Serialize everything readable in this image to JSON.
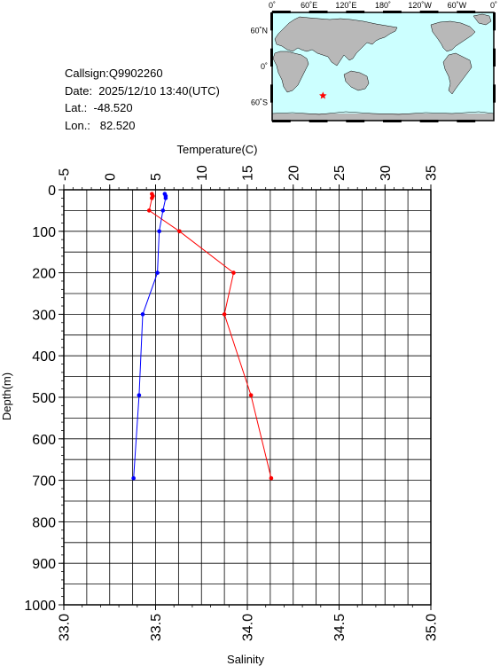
{
  "info": {
    "callsign": "Callsign:Q9902260",
    "date": "Date:  2025/12/10 13:40(UTC)",
    "lat": "Lat.:  -48.520",
    "lon": "Lon.:   82.520"
  },
  "map": {
    "lon_labels": [
      "0˚",
      "60˚E",
      "120˚E",
      "180˚",
      "120˚W",
      "60˚W",
      "0˚"
    ],
    "lat_labels": [
      "60˚N",
      "0˚",
      "60˚S"
    ],
    "station": {
      "lon": 82.52,
      "lat": -48.52
    },
    "ocean_color": "#ccffff",
    "land_color": "#b8b8b8",
    "marker_color": "#ff0000",
    "marker_icon": "star-icon"
  },
  "chart_data": {
    "type": "line",
    "ylabel": "Depth(m)",
    "ylim": [
      1000,
      0
    ],
    "yticks": [
      "0",
      "100",
      "200",
      "300",
      "400",
      "500",
      "600",
      "700",
      "800",
      "900",
      "1000"
    ],
    "x_top": {
      "label": "Temperature(C)",
      "range": [
        -5,
        35
      ],
      "ticks": [
        "-5",
        "0",
        "5",
        "10",
        "15",
        "20",
        "25",
        "30",
        "35"
      ]
    },
    "x_bottom": {
      "label": "Salinity",
      "range": [
        33.0,
        35.0
      ],
      "ticks": [
        "33.0",
        "33.5",
        "34.0",
        "34.5",
        "35.0"
      ]
    },
    "grid": true,
    "series": [
      {
        "axis": "top",
        "color": "#ff0000",
        "points": [
          [
            4.6,
            10
          ],
          [
            4.7,
            15
          ],
          [
            4.6,
            20
          ],
          [
            4.3,
            50
          ],
          [
            7.6,
            100
          ],
          [
            13.5,
            200
          ],
          [
            12.5,
            300
          ],
          [
            15.4,
            495
          ],
          [
            17.6,
            695
          ]
        ]
      },
      {
        "axis": "bottom",
        "color": "#0000ff",
        "points": [
          [
            33.55,
            10
          ],
          [
            33.555,
            15
          ],
          [
            33.555,
            20
          ],
          [
            33.54,
            50
          ],
          [
            33.52,
            100
          ],
          [
            33.51,
            200
          ],
          [
            33.43,
            300
          ],
          [
            33.41,
            495
          ],
          [
            33.38,
            695
          ]
        ]
      }
    ]
  }
}
